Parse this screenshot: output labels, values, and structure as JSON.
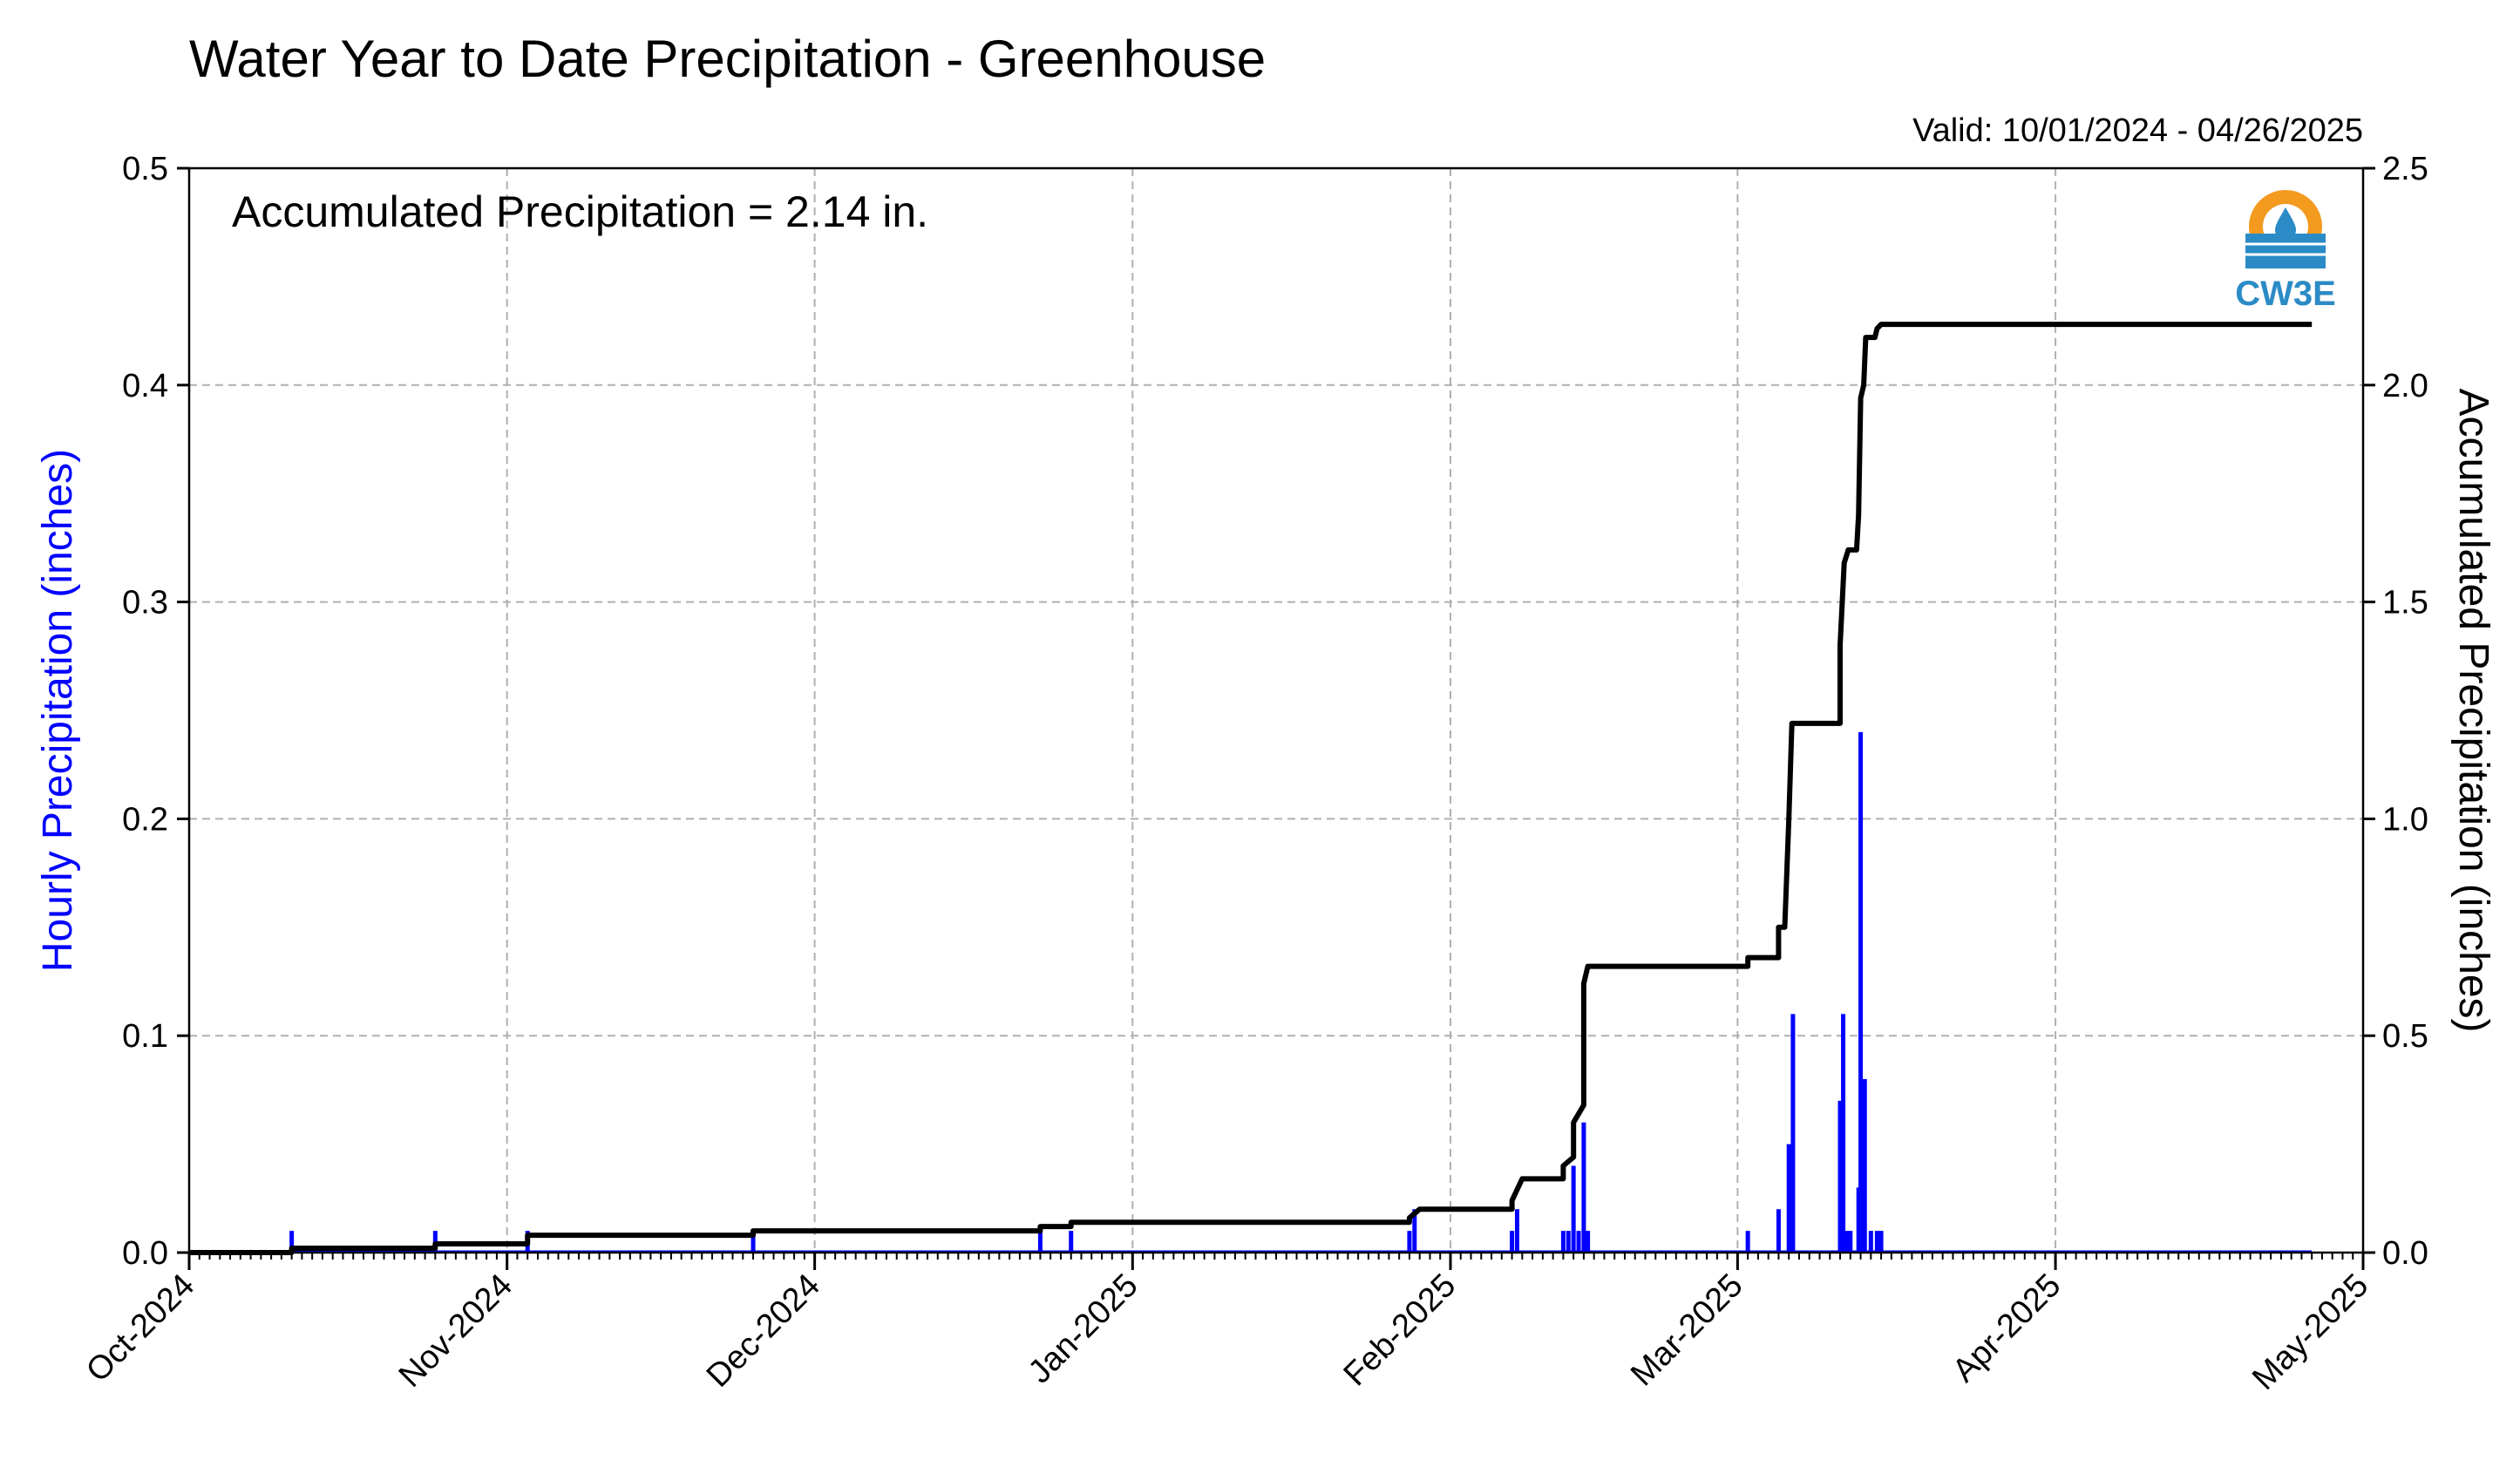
{
  "chart_data": {
    "type": "bar+line",
    "title": "Water Year to Date Precipitation - Greenhouse",
    "valid_text": "Valid: 10/01/2024 - 04/26/2025",
    "annotation": "Accumulated Precipitation = 2.14 in.",
    "logo_text": "CW3E",
    "ylabel_left": "Hourly Precipitation (inches)",
    "ylabel_right": "Accumulated Precipitation (inches)",
    "ylim_left": [
      0,
      0.5
    ],
    "ylim_right": [
      0,
      2.5
    ],
    "yticks_left": [
      "0.0",
      "0.1",
      "0.2",
      "0.3",
      "0.4",
      "0.5"
    ],
    "yticks_right": [
      "0.0",
      "0.5",
      "1.0",
      "1.5",
      "2.0",
      "2.5"
    ],
    "xticks": [
      "Oct-2024",
      "Nov-2024",
      "Dec-2024",
      "Jan-2025",
      "Feb-2025",
      "Mar-2025",
      "Apr-2025",
      "May-2025"
    ],
    "x_range": [
      "2024-10-01",
      "2025-05-01"
    ],
    "grid": true,
    "colors": {
      "hourly": "#0000ff",
      "accumulated": "#000000",
      "grid": "#b0b0b0"
    },
    "hourly_series": {
      "name": "Hourly Precipitation",
      "points": [
        {
          "date": "2024-10-11",
          "value": 0.01
        },
        {
          "date": "2024-10-25",
          "value": 0.01
        },
        {
          "date": "2024-11-03",
          "value": 0.01
        },
        {
          "date": "2024-11-25",
          "value": 0.01
        },
        {
          "date": "2024-12-23",
          "value": 0.01
        },
        {
          "date": "2024-12-26",
          "value": 0.01
        },
        {
          "date": "2025-01-28",
          "value": 0.01
        },
        {
          "date": "2025-01-28.5",
          "value": 0.02
        },
        {
          "date": "2025-02-07",
          "value": 0.01
        },
        {
          "date": "2025-02-07.5",
          "value": 0.02
        },
        {
          "date": "2025-02-12",
          "value": 0.01
        },
        {
          "date": "2025-02-12.5",
          "value": 0.01
        },
        {
          "date": "2025-02-13",
          "value": 0.04
        },
        {
          "date": "2025-02-13.5",
          "value": 0.01
        },
        {
          "date": "2025-02-14",
          "value": 0.06
        },
        {
          "date": "2025-02-14.4",
          "value": 0.01
        },
        {
          "date": "2025-03-02",
          "value": 0.01
        },
        {
          "date": "2025-03-05",
          "value": 0.02
        },
        {
          "date": "2025-03-06",
          "value": 0.05
        },
        {
          "date": "2025-03-06.4",
          "value": 0.11
        },
        {
          "date": "2025-03-11",
          "value": 0.07
        },
        {
          "date": "2025-03-11.3",
          "value": 0.11
        },
        {
          "date": "2025-03-11.6",
          "value": 0.01
        },
        {
          "date": "2025-03-12",
          "value": 0.01
        },
        {
          "date": "2025-03-12.8",
          "value": 0.03
        },
        {
          "date": "2025-03-13",
          "value": 0.24
        },
        {
          "date": "2025-03-13.4",
          "value": 0.08
        },
        {
          "date": "2025-03-14",
          "value": 0.01
        },
        {
          "date": "2025-03-14.6",
          "value": 0.01
        },
        {
          "date": "2025-03-15",
          "value": 0.01
        }
      ]
    },
    "accumulated_series": {
      "name": "Accumulated Precipitation",
      "points": [
        {
          "date": "2024-10-01",
          "value": 0.0
        },
        {
          "date": "2024-10-11",
          "value": 0.0
        },
        {
          "date": "2024-10-11",
          "value": 0.01
        },
        {
          "date": "2024-10-25",
          "value": 0.01
        },
        {
          "date": "2024-10-25",
          "value": 0.02
        },
        {
          "date": "2024-11-03",
          "value": 0.02
        },
        {
          "date": "2024-11-03",
          "value": 0.04
        },
        {
          "date": "2024-11-25",
          "value": 0.04
        },
        {
          "date": "2024-11-25",
          "value": 0.05
        },
        {
          "date": "2024-12-23",
          "value": 0.05
        },
        {
          "date": "2024-12-23",
          "value": 0.06
        },
        {
          "date": "2024-12-26",
          "value": 0.06
        },
        {
          "date": "2024-12-26",
          "value": 0.07
        },
        {
          "date": "2025-01-28",
          "value": 0.07
        },
        {
          "date": "2025-01-28",
          "value": 0.08
        },
        {
          "date": "2025-01-29",
          "value": 0.1
        },
        {
          "date": "2025-02-07",
          "value": 0.1
        },
        {
          "date": "2025-02-07",
          "value": 0.12
        },
        {
          "date": "2025-02-08",
          "value": 0.17
        },
        {
          "date": "2025-02-12",
          "value": 0.17
        },
        {
          "date": "2025-02-12",
          "value": 0.2
        },
        {
          "date": "2025-02-13",
          "value": 0.22
        },
        {
          "date": "2025-02-13",
          "value": 0.3
        },
        {
          "date": "2025-02-14",
          "value": 0.34
        },
        {
          "date": "2025-02-14",
          "value": 0.62
        },
        {
          "date": "2025-02-14.4",
          "value": 0.66
        },
        {
          "date": "2025-03-02",
          "value": 0.66
        },
        {
          "date": "2025-03-02",
          "value": 0.68
        },
        {
          "date": "2025-03-05",
          "value": 0.68
        },
        {
          "date": "2025-03-05",
          "value": 0.75
        },
        {
          "date": "2025-03-05.6",
          "value": 0.75
        },
        {
          "date": "2025-03-06",
          "value": 1.0
        },
        {
          "date": "2025-03-06.3",
          "value": 1.22
        },
        {
          "date": "2025-03-11",
          "value": 1.22
        },
        {
          "date": "2025-03-11",
          "value": 1.4
        },
        {
          "date": "2025-03-11.4",
          "value": 1.59
        },
        {
          "date": "2025-03-11.8",
          "value": 1.62
        },
        {
          "date": "2025-03-12.6",
          "value": 1.62
        },
        {
          "date": "2025-03-12.8",
          "value": 1.7
        },
        {
          "date": "2025-03-13",
          "value": 1.97
        },
        {
          "date": "2025-03-13.3",
          "value": 2.0
        },
        {
          "date": "2025-03-13.5",
          "value": 2.11
        },
        {
          "date": "2025-03-14.4",
          "value": 2.11
        },
        {
          "date": "2025-03-14.6",
          "value": 2.13
        },
        {
          "date": "2025-03-15",
          "value": 2.14
        },
        {
          "date": "2025-04-26",
          "value": 2.14
        }
      ]
    }
  }
}
